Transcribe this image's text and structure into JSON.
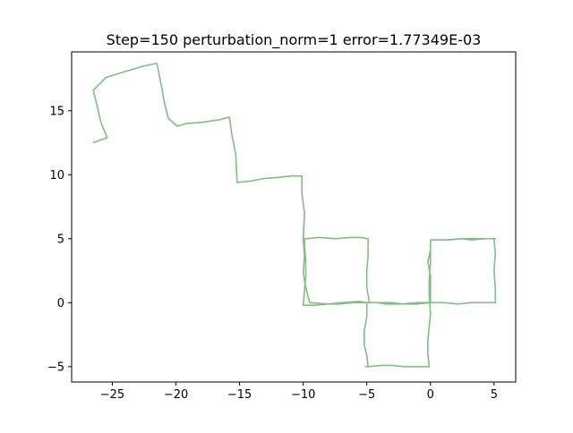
{
  "chart_data": {
    "type": "line",
    "title": "Step=150 perturbation_norm=1 error=1.77349E-03",
    "xlabel": "",
    "ylabel": "",
    "xlim": [
      -28.2,
      6.7
    ],
    "ylim": [
      -6.2,
      19.6
    ],
    "xticks": [
      -25,
      -20,
      -15,
      -10,
      -5,
      0,
      5
    ],
    "xtick_labels": [
      "−25",
      "−20",
      "−15",
      "−10",
      "−5",
      "0",
      "5"
    ],
    "yticks": [
      -5,
      0,
      5,
      10,
      15
    ],
    "ytick_labels": [
      "−5",
      "0",
      "5",
      "10",
      "15"
    ],
    "grid": false,
    "series": [
      {
        "color": "#7fbf7f",
        "x": [
          -26.5,
          -25.4,
          -25.9,
          -26.2,
          -26.5,
          -25.5,
          -23.9,
          -22.5,
          -21.5,
          -21.3,
          -21.1,
          -20.9,
          -20.6,
          -19.9,
          -19.2,
          -17.9,
          -16.6,
          -15.8,
          -15.6,
          -15.3,
          -15.2,
          -14.2,
          -13.1,
          -11.9,
          -10.9,
          -10.1,
          -10.1,
          -9.9,
          -10.0,
          -9.9,
          -10.0,
          -9.8,
          -9.5,
          -8.0,
          -6.9,
          -5.6,
          -5.0,
          -5.0,
          -5.2,
          -5.2,
          -5.0,
          -4.9,
          -5.1,
          -4.9,
          -3.8,
          -3.0,
          -2.1,
          -1.1,
          -0.1,
          -0.2,
          -0.2,
          -0.1,
          0.0,
          -0.1,
          -0.1,
          0.0,
          0.0,
          0.0,
          1.4,
          2.5,
          3.2,
          4.3,
          5.0,
          5.1,
          5.0,
          5.1,
          5.1,
          5.0,
          4.1,
          3.2,
          2.2,
          1.0,
          0.0,
          -1.1,
          -2.2,
          -3.5,
          -4.2,
          -5.2,
          -6.1,
          -7.1,
          -8.1,
          -9.1,
          -10.0,
          -9.9,
          -9.8,
          -9.8,
          -9.9,
          -9.9,
          -9.8,
          -8.7,
          -7.5,
          -6.3,
          -5.5,
          -4.9,
          -4.9,
          -5.0,
          -5.0,
          -4.8,
          -3.9,
          -3.1,
          -2.2,
          -1.1,
          0.0,
          0.0,
          0.0,
          -0.2,
          0.0,
          0.0,
          1.2,
          2.4,
          3.5,
          4.4,
          5.1
        ],
        "y": [
          12.5,
          12.9,
          14.1,
          15.4,
          16.6,
          17.6,
          18.1,
          18.5,
          18.7,
          17.7,
          16.7,
          15.6,
          14.4,
          13.8,
          14.0,
          14.1,
          14.3,
          14.5,
          13.1,
          11.6,
          9.4,
          9.5,
          9.7,
          9.8,
          9.9,
          9.9,
          8.5,
          7.0,
          5.0,
          3.6,
          2.3,
          1.2,
          0.0,
          -0.1,
          0.0,
          0.1,
          0.0,
          -1.1,
          -2.2,
          -3.3,
          -4.1,
          -5.0,
          -5.0,
          -5.0,
          -4.9,
          -4.9,
          -5.0,
          -5.0,
          -5.0,
          -4.0,
          -3.0,
          -1.9,
          -0.9,
          0.7,
          1.8,
          3.1,
          4.0,
          4.9,
          4.9,
          5.0,
          4.9,
          5.0,
          5.0,
          3.8,
          2.5,
          1.1,
          0.0,
          0.0,
          0.0,
          0.0,
          -0.1,
          0.0,
          0.0,
          0.0,
          -0.1,
          -0.1,
          0.0,
          0.0,
          0.0,
          -0.1,
          -0.1,
          -0.2,
          -0.2,
          0.9,
          2.1,
          3.4,
          4.3,
          5.0,
          5.0,
          5.1,
          5.0,
          5.1,
          5.1,
          5.0,
          3.7,
          2.5,
          1.2,
          0.0,
          0.0,
          0.0,
          -0.1,
          -0.1,
          0.0,
          1.2,
          2.1,
          3.2,
          4.1,
          4.9,
          4.9,
          5.0,
          5.0,
          5.0,
          5.0
        ]
      }
    ]
  }
}
